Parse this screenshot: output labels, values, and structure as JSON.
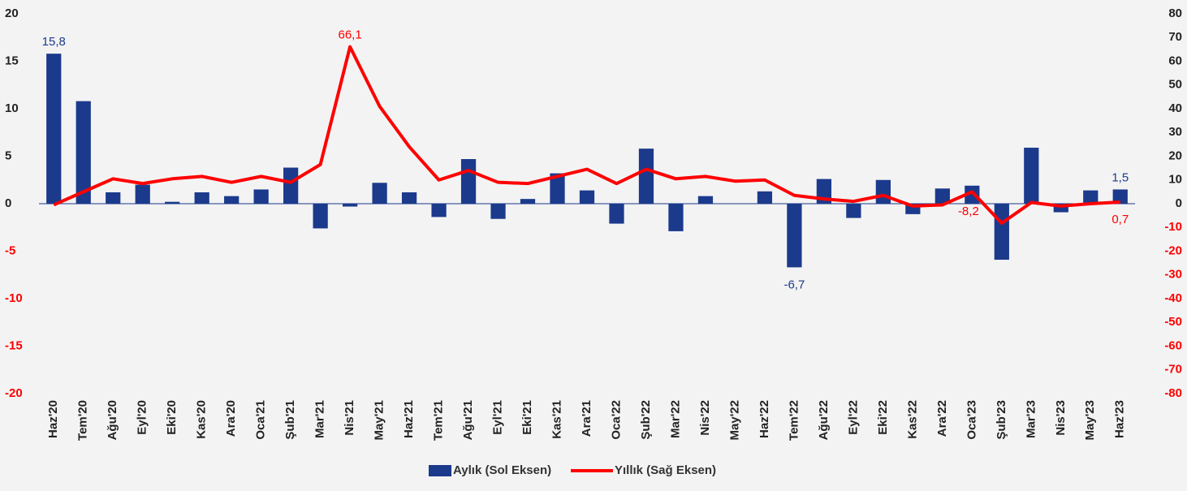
{
  "chart_data": {
    "type": "bar_line",
    "categories": [
      "Haz'20",
      "Tem'20",
      "Ağu'20",
      "Eyl'20",
      "Eki'20",
      "Kas'20",
      "Ara'20",
      "Oca'21",
      "Şub'21",
      "Mar'21",
      "Nis'21",
      "May'21",
      "Haz'21",
      "Tem'21",
      "Ağu'21",
      "Eyl'21",
      "Eki'21",
      "Kas'21",
      "Ara'21",
      "Oca'22",
      "Şub'22",
      "Mar'22",
      "Nis'22",
      "May'22",
      "Haz'22",
      "Tem'22",
      "Ağu'22",
      "Eyl'22",
      "Eki'22",
      "Kas'22",
      "Ara'22",
      "Oca'23",
      "Şub'23",
      "Mar'23",
      "Nis'23",
      "May'23",
      "Haz'23"
    ],
    "series": [
      {
        "name": "Aylık (Sol Eksen)",
        "type": "bar",
        "axis": "y",
        "color": "#1b3a8c",
        "values": [
          15.8,
          10.8,
          1.2,
          2.0,
          0.2,
          1.2,
          0.8,
          1.5,
          3.8,
          -2.6,
          -0.3,
          2.2,
          1.2,
          -1.4,
          4.7,
          -1.6,
          0.5,
          3.2,
          1.4,
          -2.1,
          5.8,
          -2.9,
          0.8,
          0.0,
          1.3,
          -6.7,
          2.6,
          -1.5,
          2.5,
          -1.1,
          1.6,
          1.9,
          -5.9,
          5.9,
          -0.9,
          1.4,
          1.5
        ],
        "value_labels": [
          "15,8",
          null,
          null,
          null,
          null,
          null,
          null,
          null,
          null,
          null,
          null,
          null,
          null,
          null,
          null,
          null,
          null,
          null,
          null,
          null,
          null,
          null,
          null,
          null,
          null,
          "-6,7",
          null,
          null,
          null,
          null,
          null,
          null,
          null,
          null,
          null,
          null,
          "1,5"
        ]
      },
      {
        "name": "Yıllık (Sağ Eksen)",
        "type": "line",
        "axis": "y2",
        "color": "#ff0000",
        "values": [
          -0.5,
          5,
          10.5,
          8.5,
          10.5,
          11.5,
          9,
          11.5,
          9,
          16.5,
          66.1,
          41,
          24,
          10,
          14,
          9,
          8.5,
          11.5,
          14.5,
          8.5,
          14.5,
          10.5,
          11.5,
          9.5,
          10,
          3.5,
          2,
          1,
          3.5,
          -1,
          -0.5,
          5,
          -8.2,
          0.5,
          -1,
          0,
          0.7
        ],
        "value_labels": [
          null,
          null,
          null,
          null,
          null,
          null,
          null,
          null,
          null,
          null,
          "66,1",
          null,
          null,
          null,
          null,
          null,
          null,
          null,
          null,
          null,
          null,
          null,
          null,
          null,
          null,
          null,
          null,
          null,
          null,
          null,
          null,
          null,
          "-8,2",
          null,
          null,
          null,
          "0,7"
        ]
      }
    ],
    "ylim": [
      -20,
      20
    ],
    "yticks": [
      -20,
      -15,
      -10,
      -5,
      0,
      5,
      10,
      15,
      20
    ],
    "y2lim": [
      -80,
      80
    ],
    "y2ticks": [
      -80,
      -70,
      -60,
      -50,
      -40,
      -30,
      -20,
      -10,
      0,
      10,
      20,
      30,
      40,
      50,
      60,
      70,
      80
    ],
    "legend": "bottom"
  }
}
